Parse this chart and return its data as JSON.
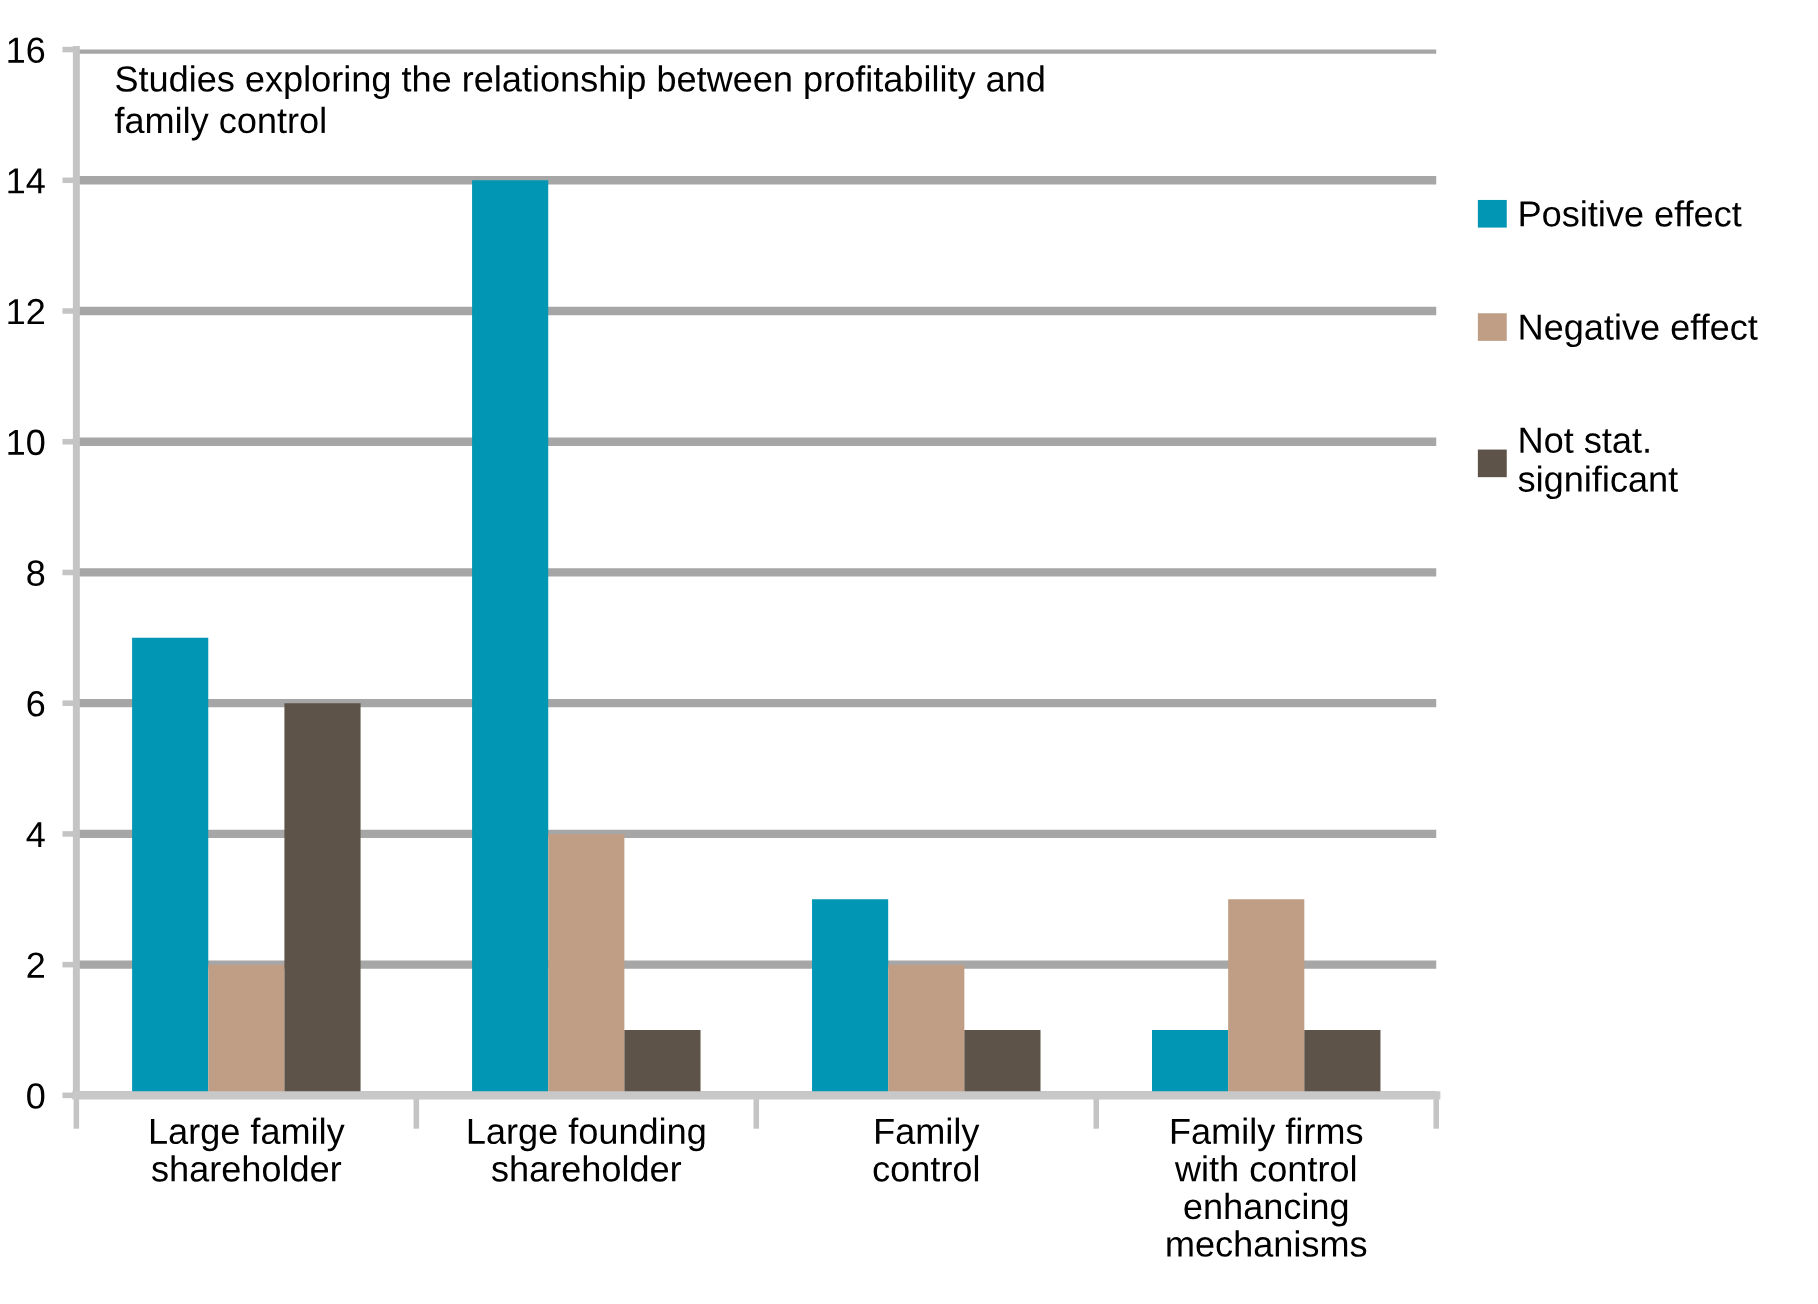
{
  "chart_data": {
    "type": "bar",
    "title": "Studies exploring the relationship between profitability and\nfamily control",
    "categories": [
      "Large family\nshareholder",
      "Large founding\nshareholder",
      "Family\ncontrol",
      "Family firms\nwith control\nenhancing\nmechanisms"
    ],
    "series": [
      {
        "name": "Positive effect",
        "color": "#0096b4",
        "values": [
          7,
          14,
          3,
          1
        ]
      },
      {
        "name": "Negative effect",
        "color": "#bf9e85",
        "values": [
          2,
          4,
          2,
          3
        ]
      },
      {
        "name": "Not stat.\nsignificant",
        "color": "#5e5349",
        "values": [
          6,
          1,
          1,
          1
        ]
      }
    ],
    "ylim": [
      0,
      16
    ],
    "yticks": [
      0,
      2,
      4,
      6,
      8,
      10,
      12,
      14,
      16
    ],
    "grid": "y",
    "legend": "right"
  }
}
